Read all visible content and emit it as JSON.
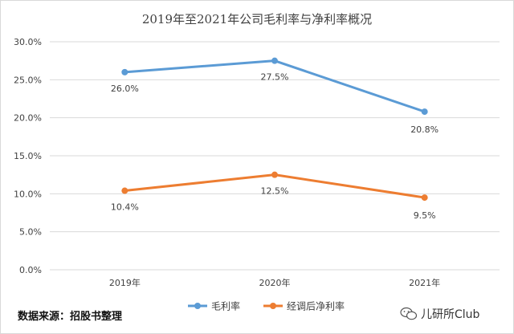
{
  "chart_data": {
    "type": "line",
    "title": "2019年至2021年公司毛利率与净利率概况",
    "categories": [
      "2019年",
      "2020年",
      "2021年"
    ],
    "series": [
      {
        "name": "毛利率",
        "values": [
          26.0,
          27.5,
          20.8
        ],
        "labels": [
          "26.0%",
          "27.5%",
          "20.8%"
        ],
        "color": "#5b9bd5"
      },
      {
        "name": "经调后净利率",
        "values": [
          10.4,
          12.5,
          9.5
        ],
        "labels": [
          "10.4%",
          "12.5%",
          "9.5%"
        ],
        "color": "#ed7d31"
      }
    ],
    "ylim": [
      0,
      30
    ],
    "yticks": [
      0,
      5,
      10,
      15,
      20,
      25,
      30
    ],
    "ytick_labels": [
      "0.0%",
      "5.0%",
      "10.0%",
      "15.0%",
      "20.0%",
      "25.0%",
      "30.0%"
    ],
    "grid": true,
    "legend": "bottom",
    "xlabel": "",
    "ylabel": ""
  },
  "footer": {
    "source": "数据来源：招股书整理",
    "watermark": "儿研所Club",
    "watermark_icon": "wechat-icon"
  },
  "colors": {
    "gridline": "#d9d9d9",
    "axis_text": "#404040",
    "title_text": "#404040"
  }
}
